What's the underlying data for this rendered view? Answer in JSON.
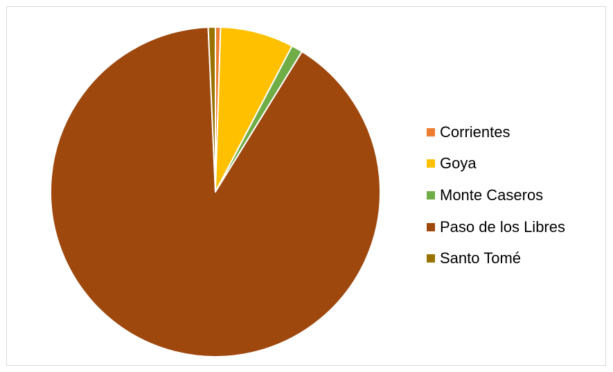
{
  "chart_data": {
    "type": "pie",
    "title": "",
    "categories": [
      "Corrientes",
      "Goya",
      "Monte Caseros",
      "Paso de los Libres",
      "Santo Tomé"
    ],
    "values": [
      0.5,
      7.2,
      1.1,
      90.5,
      0.7
    ],
    "colors": [
      "#ED7D31",
      "#FFC000",
      "#70AD47",
      "#9E480E",
      "#997300"
    ],
    "start_angle_deg": 0,
    "direction": "clockwise",
    "slice_border_color": "#ffffff",
    "legend_position": "right"
  }
}
